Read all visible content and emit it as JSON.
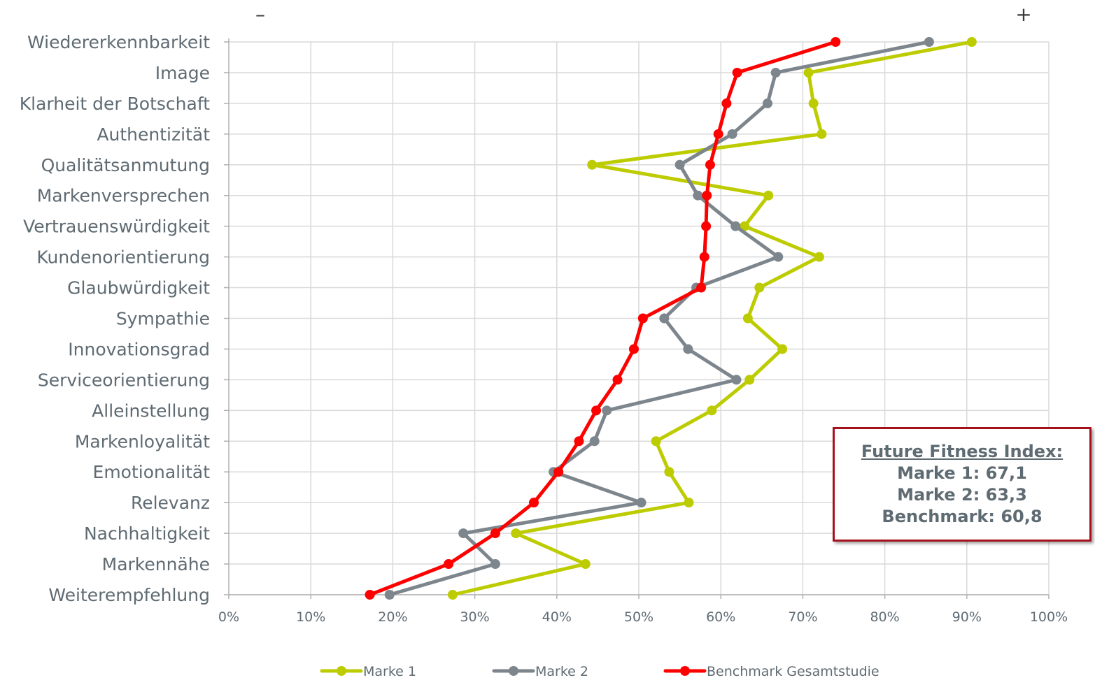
{
  "chart_data": {
    "type": "line",
    "orientation": "horizontal",
    "categories": [
      "Wiedererkennbarkeit",
      "Image",
      "Klarheit der Botschaft",
      "Authentizität",
      "Qualitätsanmutung",
      "Markenversprechen",
      "Vertrauenswürdigkeit",
      "Kundenorientierung",
      "Glaubwürdigkeit",
      "Sympathie",
      "Innovationsgrad",
      "Serviceorientierung",
      "Alleinstellung",
      "Markenloyalität",
      "Emotionalität",
      "Relevanz",
      "Nachhaltigkeit",
      "Markennähe",
      "Weiterempfehlung"
    ],
    "series": [
      {
        "name": "Marke 1",
        "color": "#bdcc00",
        "values": [
          90.6,
          70.7,
          71.3,
          72.3,
          44.3,
          65.8,
          62.9,
          72.0,
          64.7,
          63.3,
          67.5,
          63.5,
          58.9,
          52.1,
          53.7,
          56.1,
          35.0,
          43.5,
          27.3
        ]
      },
      {
        "name": "Marke 2",
        "color": "#7d858d",
        "values": [
          85.4,
          66.7,
          65.7,
          61.4,
          55.0,
          57.2,
          61.8,
          67.0,
          57.0,
          53.1,
          56.0,
          61.9,
          46.1,
          44.6,
          39.6,
          50.3,
          28.6,
          32.5,
          19.6
        ]
      },
      {
        "name": "Benchmark Gesamtstudie",
        "color": "#ff0000",
        "values": [
          74.0,
          62.0,
          60.7,
          59.7,
          58.7,
          58.3,
          58.2,
          58.0,
          57.6,
          50.5,
          49.4,
          47.4,
          44.8,
          42.7,
          40.2,
          37.2,
          32.5,
          26.8,
          17.2
        ]
      }
    ],
    "xticks": [
      "0%",
      "10%",
      "20%",
      "30%",
      "40%",
      "50%",
      "60%",
      "70%",
      "80%",
      "90%",
      "100%"
    ],
    "xlim": [
      0,
      100
    ],
    "grid": true,
    "scale_minus": "–",
    "scale_plus": "+",
    "legend_position": "bottom"
  },
  "index_box": {
    "title": "Future Fitness Index:",
    "lines": [
      "Marke 1: 67,1",
      "Marke 2: 63,3",
      "Benchmark: 60,8"
    ]
  }
}
